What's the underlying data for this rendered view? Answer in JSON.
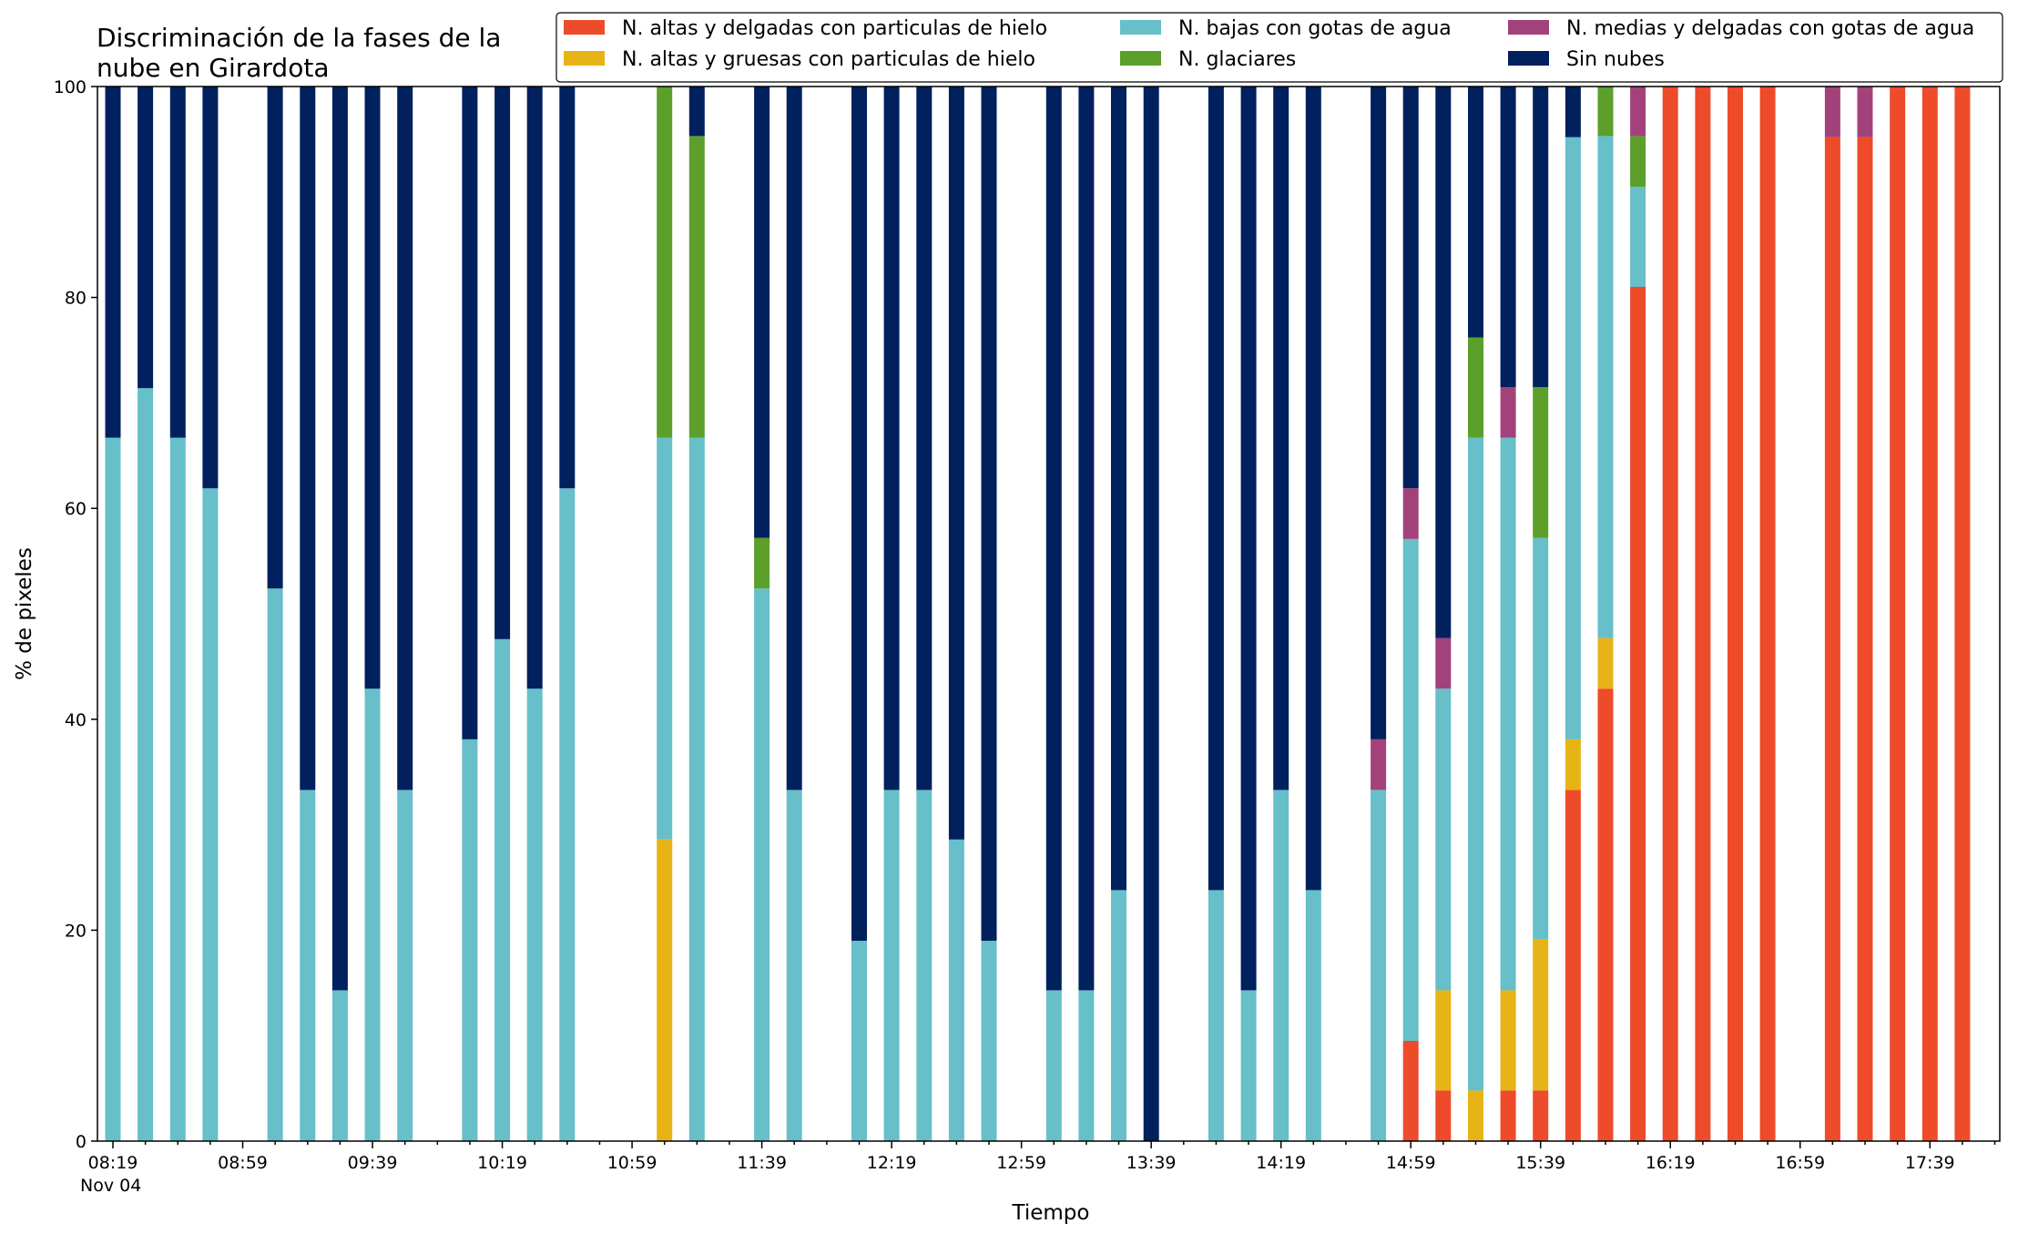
{
  "chart_data": {
    "type": "bar",
    "stacked": true,
    "title_lines": [
      "Discriminación de la fases de la",
      "nube en Girardota"
    ],
    "xlabel": "Tiempo",
    "ylabel": "% de pixeles",
    "ylim": [
      0,
      100
    ],
    "yticks": [
      "0",
      "20",
      "40",
      "60",
      "80",
      "100"
    ],
    "xtick_labels": [
      "08:19",
      "08:59",
      "09:39",
      "10:19",
      "10:59",
      "11:39",
      "12:19",
      "12:59",
      "13:39",
      "14:19",
      "14:59",
      "15:39",
      "16:19",
      "16:59",
      "17:39"
    ],
    "date_label": "Nov 04",
    "x_start": "08:19",
    "x_end": "18:03",
    "x_step_minutes": 10,
    "major_tick_every": 4,
    "grid": false,
    "legend_position": "top-right",
    "series": [
      {
        "name": "N. altas y delgadas con particulas de hielo",
        "color": "#EE4B2B"
      },
      {
        "name": "N. altas y gruesas con particulas de hielo",
        "color": "#E6B416"
      },
      {
        "name": "N. bajas con gotas de agua",
        "color": "#66BFC9"
      },
      {
        "name": "N. glaciares",
        "color": "#5C9F2B"
      },
      {
        "name": "N. medias y delgadas con gotas de agua",
        "color": "#A3427A"
      },
      {
        "name": "Sin nubes",
        "color": "#00205E"
      }
    ],
    "bars": [
      {
        "t": "08:19",
        "v": [
          0,
          0,
          66.7,
          0,
          0,
          33.3
        ]
      },
      {
        "t": "08:29",
        "v": [
          0,
          0,
          71.4,
          0,
          0,
          28.6
        ]
      },
      {
        "t": "08:39",
        "v": [
          0,
          0,
          66.7,
          0,
          0,
          33.3
        ]
      },
      {
        "t": "08:49",
        "v": [
          0,
          0,
          61.9,
          0,
          0,
          38.1
        ]
      },
      {
        "t": "09:09",
        "v": [
          0,
          0,
          52.4,
          0,
          0,
          47.6
        ]
      },
      {
        "t": "09:19",
        "v": [
          0,
          0,
          33.3,
          0,
          0,
          66.7
        ]
      },
      {
        "t": "09:29",
        "v": [
          0,
          0,
          14.3,
          0,
          0,
          85.7
        ]
      },
      {
        "t": "09:39",
        "v": [
          0,
          0,
          42.9,
          0,
          0,
          57.1
        ]
      },
      {
        "t": "09:49",
        "v": [
          0,
          0,
          33.3,
          0,
          0,
          66.7
        ]
      },
      {
        "t": "10:09",
        "v": [
          0,
          0,
          38.1,
          0,
          0,
          61.9
        ]
      },
      {
        "t": "10:19",
        "v": [
          0,
          0,
          47.6,
          0,
          0,
          52.4
        ]
      },
      {
        "t": "10:29",
        "v": [
          0,
          0,
          42.9,
          0,
          0,
          57.1
        ]
      },
      {
        "t": "10:39",
        "v": [
          0,
          0,
          61.9,
          0,
          0,
          38.1
        ]
      },
      {
        "t": "11:09",
        "v": [
          0,
          28.6,
          38.1,
          33.3,
          0,
          0
        ]
      },
      {
        "t": "11:19",
        "v": [
          0,
          0,
          66.7,
          28.6,
          0,
          4.7
        ]
      },
      {
        "t": "11:39",
        "v": [
          0,
          0,
          52.4,
          4.8,
          0,
          42.8
        ]
      },
      {
        "t": "11:49",
        "v": [
          0,
          0,
          33.3,
          0,
          0,
          66.7
        ]
      },
      {
        "t": "12:09",
        "v": [
          0,
          0,
          19.0,
          0,
          0,
          81.0
        ]
      },
      {
        "t": "12:19",
        "v": [
          0,
          0,
          33.3,
          0,
          0,
          66.7
        ]
      },
      {
        "t": "12:29",
        "v": [
          0,
          0,
          33.3,
          0,
          0,
          66.7
        ]
      },
      {
        "t": "12:39",
        "v": [
          0,
          0,
          28.6,
          0,
          0,
          71.4
        ]
      },
      {
        "t": "12:49",
        "v": [
          0,
          0,
          19.0,
          0,
          0,
          81.0
        ]
      },
      {
        "t": "13:09",
        "v": [
          0,
          0,
          14.3,
          0,
          0,
          85.7
        ]
      },
      {
        "t": "13:19",
        "v": [
          0,
          0,
          14.3,
          0,
          0,
          85.7
        ]
      },
      {
        "t": "13:29",
        "v": [
          0,
          0,
          23.8,
          0,
          0,
          76.2
        ]
      },
      {
        "t": "13:39",
        "v": [
          0,
          0,
          0,
          0,
          0,
          100
        ]
      },
      {
        "t": "13:59",
        "v": [
          0,
          0,
          23.8,
          0,
          0,
          76.2
        ]
      },
      {
        "t": "14:09",
        "v": [
          0,
          0,
          14.3,
          0,
          0,
          85.7
        ]
      },
      {
        "t": "14:19",
        "v": [
          0,
          0,
          33.3,
          0,
          0,
          66.7
        ]
      },
      {
        "t": "14:29",
        "v": [
          0,
          0,
          23.8,
          0,
          0,
          76.2
        ]
      },
      {
        "t": "14:49",
        "v": [
          0,
          0,
          33.3,
          0,
          4.8,
          61.9
        ]
      },
      {
        "t": "14:59",
        "v": [
          9.5,
          0,
          47.6,
          0,
          4.8,
          38.1
        ]
      },
      {
        "t": "15:09",
        "v": [
          4.8,
          9.5,
          28.6,
          0,
          4.8,
          52.3
        ]
      },
      {
        "t": "15:19",
        "v": [
          0,
          4.8,
          61.9,
          9.5,
          0,
          23.8
        ]
      },
      {
        "t": "15:29",
        "v": [
          4.8,
          9.5,
          52.4,
          0,
          4.8,
          28.5
        ]
      },
      {
        "t": "15:39",
        "v": [
          4.8,
          14.3,
          38.1,
          14.3,
          0,
          28.5
        ]
      },
      {
        "t": "15:49",
        "v": [
          33.3,
          4.8,
          57.1,
          0,
          0,
          4.8
        ]
      },
      {
        "t": "15:59",
        "v": [
          42.9,
          4.8,
          47.6,
          4.7,
          0,
          0
        ]
      },
      {
        "t": "16:09",
        "v": [
          81.0,
          0,
          9.5,
          4.8,
          4.7,
          0
        ]
      },
      {
        "t": "16:19",
        "v": [
          100,
          0,
          0,
          0,
          0,
          0
        ]
      },
      {
        "t": "16:29",
        "v": [
          100,
          0,
          0,
          0,
          0,
          0
        ]
      },
      {
        "t": "16:39",
        "v": [
          100,
          0,
          0,
          0,
          0,
          0
        ]
      },
      {
        "t": "16:49",
        "v": [
          100,
          0,
          0,
          0,
          0,
          0
        ]
      },
      {
        "t": "17:09",
        "v": [
          95.2,
          0,
          0,
          0,
          4.8,
          0
        ]
      },
      {
        "t": "17:19",
        "v": [
          95.2,
          0,
          0,
          0,
          4.8,
          0
        ]
      },
      {
        "t": "17:29",
        "v": [
          100,
          0,
          0,
          0,
          0,
          0
        ]
      },
      {
        "t": "17:39",
        "v": [
          100,
          0,
          0,
          0,
          0,
          0
        ]
      },
      {
        "t": "17:49",
        "v": [
          100,
          0,
          0,
          0,
          0,
          0
        ]
      }
    ]
  }
}
